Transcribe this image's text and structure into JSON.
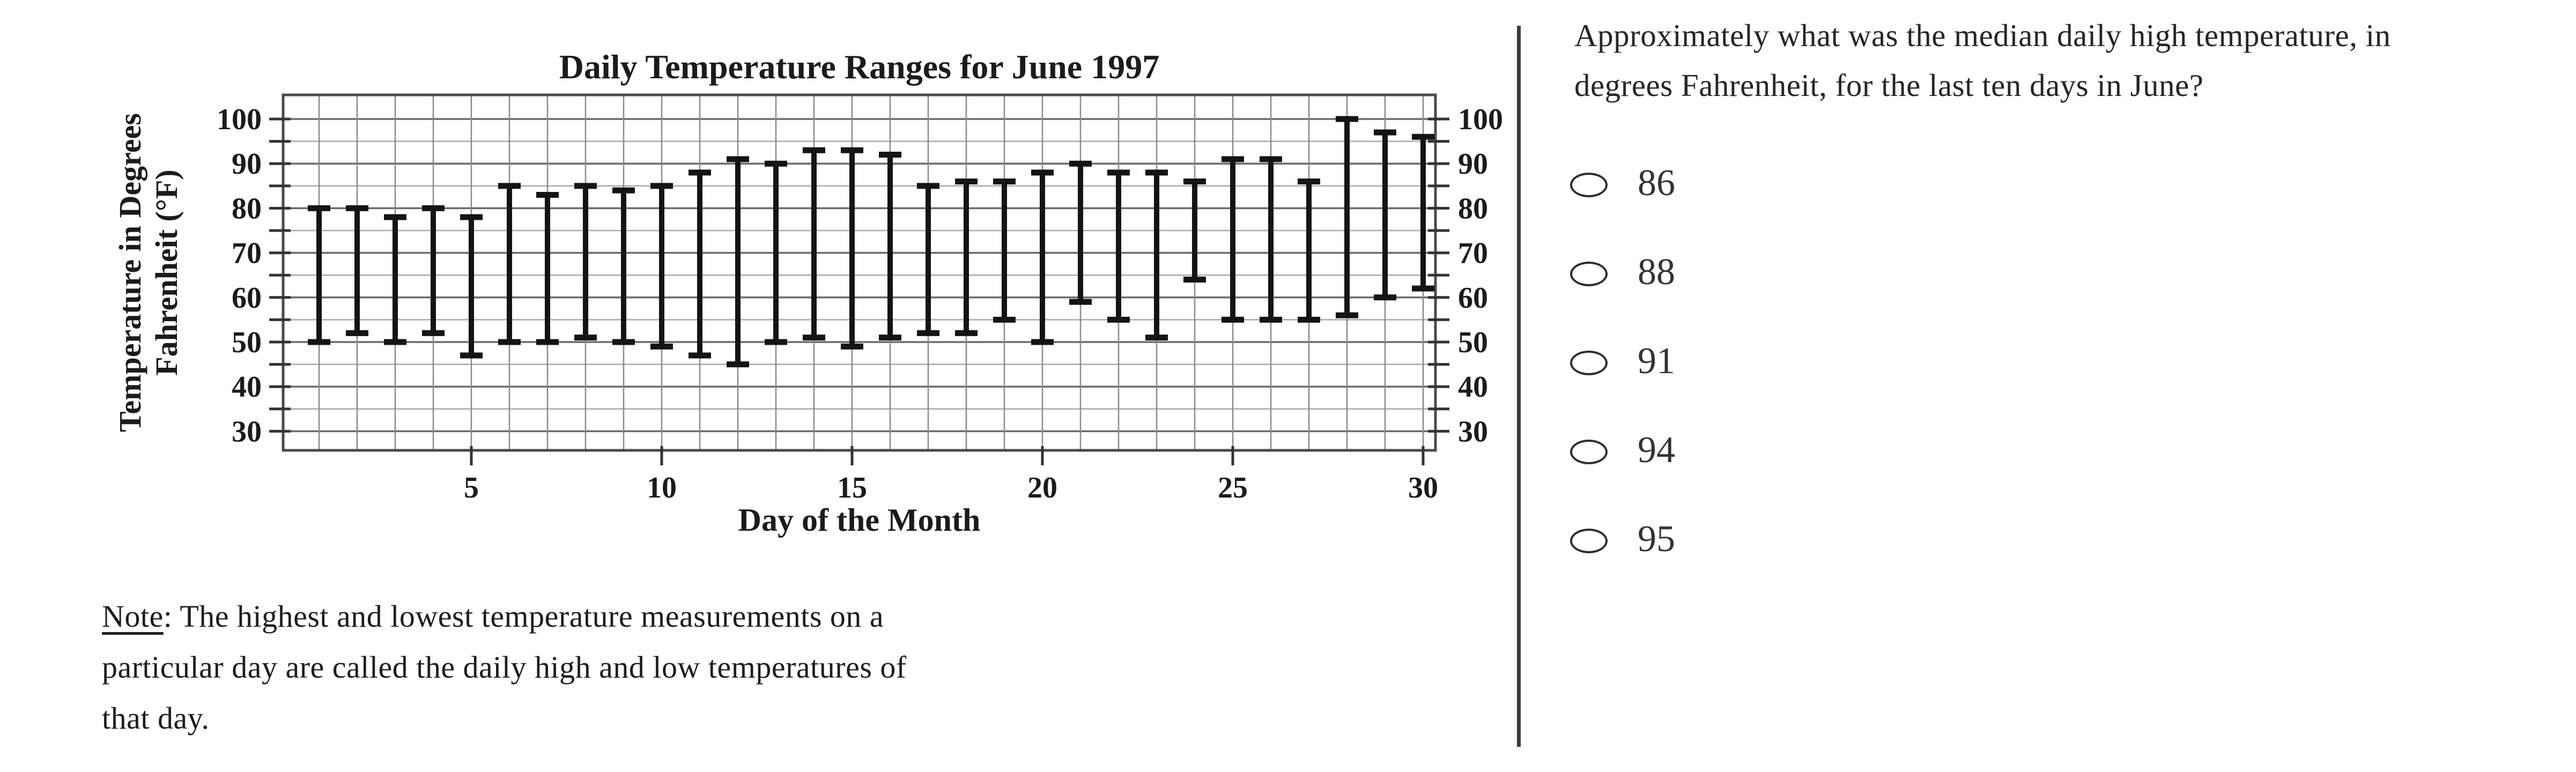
{
  "chart_data": {
    "type": "range-bar",
    "title": "Daily Temperature Ranges for June 1997",
    "xlabel": "Day of the Month",
    "ylabel_line1": "Temperature in Degrees",
    "ylabel_line2": "Fahrenheit (°F)",
    "categories_note": "x axis = day of month, 1 through 30",
    "x": [
      1,
      2,
      3,
      4,
      5,
      6,
      7,
      8,
      9,
      10,
      11,
      12,
      13,
      14,
      15,
      16,
      17,
      18,
      19,
      20,
      21,
      22,
      23,
      24,
      25,
      26,
      27,
      28,
      29,
      30
    ],
    "series": [
      {
        "name": "daily high",
        "values": [
          80,
          80,
          78,
          80,
          78,
          85,
          83,
          85,
          84,
          85,
          88,
          91,
          90,
          93,
          93,
          92,
          85,
          86,
          86,
          88,
          90,
          88,
          88,
          86,
          91,
          91,
          86,
          100,
          97,
          96
        ]
      },
      {
        "name": "daily low",
        "values": [
          50,
          52,
          50,
          52,
          47,
          50,
          50,
          51,
          50,
          49,
          47,
          45,
          50,
          51,
          49,
          51,
          52,
          52,
          55,
          50,
          59,
          55,
          51,
          64,
          55,
          55,
          55,
          56,
          60,
          62
        ]
      }
    ],
    "ylim": [
      25,
      106
    ],
    "ytick_labels": [
      30,
      40,
      50,
      60,
      70,
      80,
      90,
      100
    ],
    "ytick_minor_step": 5,
    "xtick_labels": [
      5,
      10,
      15,
      20,
      25,
      30
    ],
    "grid": true,
    "y_axis_labeled_on_both_sides": true,
    "colors": {
      "bar": "#141414",
      "grid_minor": "#a9a9a9",
      "grid_major": "#6b6b6b",
      "border": "#4a4a4a",
      "tick": "#333333",
      "text": "#1b1b1b"
    }
  },
  "note": {
    "label": "Note",
    "line1_rest": ": The highest and lowest temperature measurements on a",
    "line2": "particular day are called the daily high and low temperatures of",
    "line3": "that day."
  },
  "question": {
    "line1": "Approximately what was the median daily high temperature, in",
    "line2": "degrees Fahrenheit, for the last ten days in June?"
  },
  "options": [
    "86",
    "88",
    "91",
    "94",
    "95"
  ]
}
